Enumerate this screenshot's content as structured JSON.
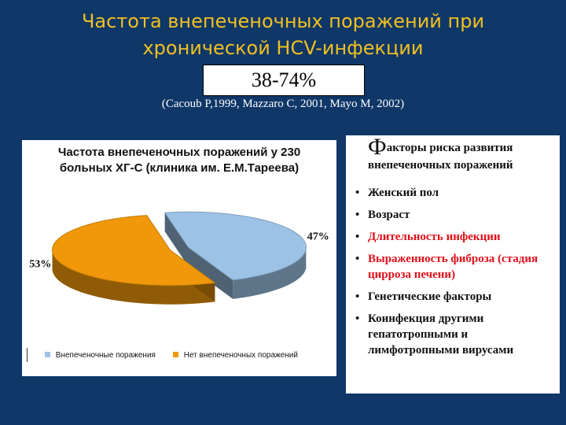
{
  "slide": {
    "title_line1": "Частота внепеченочных поражений при",
    "title_line2": "хронической HCV-инфекции",
    "range": "38-74%",
    "citation": "(Cacoub P,1999, Mazzaro C, 2001,  Mayo M, 2002)"
  },
  "factors": {
    "heading_initial": "Ф",
    "heading_rest": "акторы риска развития внепеченочных поражений",
    "items": [
      {
        "text": "Женский пол",
        "highlight": false
      },
      {
        "text": "Возраст",
        "highlight": false
      },
      {
        "text": "Длительность инфекции",
        "highlight": true
      },
      {
        "text": "Выраженность фиброза (стадия цирроза печени)",
        "highlight": true
      },
      {
        "text": "Генетические факторы",
        "highlight": false
      },
      {
        "text": "Коинфекция другими гепатотропными и лимфотропными вирусами",
        "highlight": false
      }
    ],
    "highlight_color": "#e0101a"
  },
  "chart_data": {
    "type": "pie",
    "title_line1": "Частота внепеченочных поражений у 230",
    "title_line2": "больных ХГ-С (клиника им. Е.М.Тареева)",
    "slices": [
      {
        "name": "Внепеченочные поражения",
        "value": 47,
        "label": "47%",
        "color": "#9cc3e6"
      },
      {
        "name": "Нет внепеченочных поражений",
        "value": 53,
        "label": "53%",
        "color": "#f0980a"
      }
    ],
    "legend_position": "bottom"
  }
}
